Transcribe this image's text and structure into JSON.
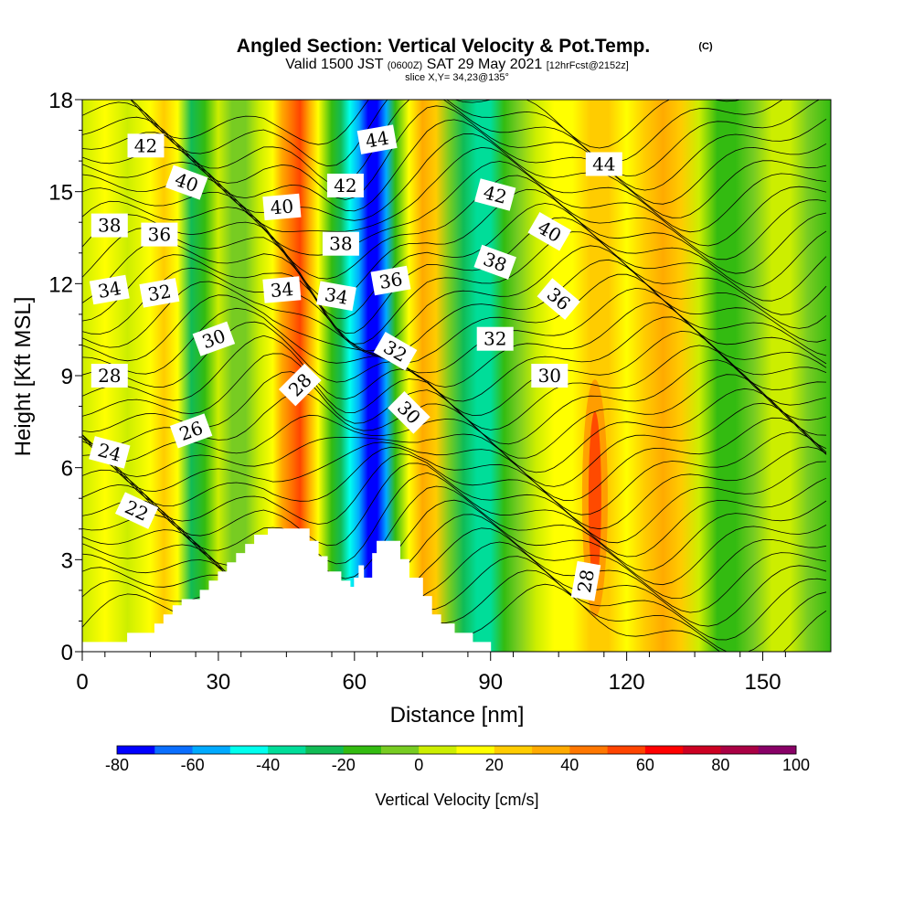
{
  "chart_data": {
    "type": "heatmap",
    "title": "Angled Section: Vertical Velocity & Pot.Temp.",
    "title_mark": "(C)",
    "subtitle": {
      "valid_prefix": "Valid 1500 JST",
      "utc": "(0600Z)",
      "date": "SAT 29 May 2021",
      "forecast": "[12hrFcst@2152z]"
    },
    "slice_note": "slice X,Y= 34,23@135°",
    "xlabel": "Distance [nm]",
    "ylabel": "Height [Kft MSL]",
    "xlim": [
      0,
      165
    ],
    "ylim": [
      0,
      18
    ],
    "xticks": [
      0,
      30,
      60,
      90,
      120,
      150
    ],
    "yticks": [
      0,
      3,
      6,
      9,
      12,
      15,
      18
    ],
    "colorbar": {
      "label": "Vertical Velocity [cm/s]",
      "levels": [
        -80,
        -70,
        -60,
        -50,
        -40,
        -30,
        -20,
        -10,
        0,
        10,
        20,
        30,
        40,
        50,
        60,
        70,
        80,
        90,
        100
      ],
      "tick_labels": [
        "-80",
        "-60",
        "-40",
        "-20",
        "0",
        "20",
        "40",
        "60",
        "80",
        "100"
      ],
      "colors": [
        "#0000ff",
        "#0a6eff",
        "#00aaff",
        "#00ffee",
        "#00dd99",
        "#11bb55",
        "#33bb11",
        "#77cc22",
        "#ccee00",
        "#ffff00",
        "#ffcc00",
        "#ffaa00",
        "#ff7700",
        "#ff4400",
        "#ff0000",
        "#cc0022",
        "#aa0044",
        "#880066"
      ]
    },
    "vertical_velocity_columns": [
      {
        "x": 0,
        "w": 0
      },
      {
        "x": 5,
        "w": 12
      },
      {
        "x": 10,
        "w": 8
      },
      {
        "x": 15,
        "w": 18
      },
      {
        "x": 18,
        "w": 24
      },
      {
        "x": 21,
        "w": 10
      },
      {
        "x": 24,
        "w": -22
      },
      {
        "x": 27,
        "w": -12
      },
      {
        "x": 30,
        "w": 2
      },
      {
        "x": 33,
        "w": -4
      },
      {
        "x": 36,
        "w": -10
      },
      {
        "x": 39,
        "w": 0
      },
      {
        "x": 42,
        "w": 18
      },
      {
        "x": 44,
        "w": 32
      },
      {
        "x": 46,
        "w": 48
      },
      {
        "x": 48,
        "w": 52
      },
      {
        "x": 50,
        "w": 36
      },
      {
        "x": 52,
        "w": 14
      },
      {
        "x": 55,
        "w": -14
      },
      {
        "x": 57,
        "w": -30
      },
      {
        "x": 59,
        "w": -44
      },
      {
        "x": 61,
        "w": -58
      },
      {
        "x": 63,
        "w": -72
      },
      {
        "x": 65,
        "w": -78
      },
      {
        "x": 67,
        "w": -52
      },
      {
        "x": 69,
        "w": -18
      },
      {
        "x": 72,
        "w": 14
      },
      {
        "x": 75,
        "w": 30
      },
      {
        "x": 78,
        "w": 20
      },
      {
        "x": 81,
        "w": -6
      },
      {
        "x": 84,
        "w": -22
      },
      {
        "x": 87,
        "w": -38
      },
      {
        "x": 90,
        "w": -34
      },
      {
        "x": 93,
        "w": -20
      },
      {
        "x": 96,
        "w": -6
      },
      {
        "x": 100,
        "w": 6
      },
      {
        "x": 104,
        "w": 12
      },
      {
        "x": 108,
        "w": 18
      },
      {
        "x": 112,
        "w": 26
      },
      {
        "x": 116,
        "w": 20
      },
      {
        "x": 120,
        "w": 12
      },
      {
        "x": 124,
        "w": 22
      },
      {
        "x": 128,
        "w": 34
      },
      {
        "x": 132,
        "w": 20
      },
      {
        "x": 136,
        "w": 4
      },
      {
        "x": 140,
        "w": -12
      },
      {
        "x": 144,
        "w": -18
      },
      {
        "x": 148,
        "w": -6
      },
      {
        "x": 152,
        "w": 4
      },
      {
        "x": 156,
        "w": 0
      },
      {
        "x": 160,
        "w": -6
      },
      {
        "x": 165,
        "w": -14
      }
    ],
    "lower_level_updraft_core": {
      "x": 113,
      "w": 62
    },
    "terrain": [
      [
        0,
        0.3
      ],
      [
        10,
        0.3
      ],
      [
        10,
        0.6
      ],
      [
        16,
        0.6
      ],
      [
        16,
        0.9
      ],
      [
        18,
        0.9
      ],
      [
        18,
        1.2
      ],
      [
        20,
        1.2
      ],
      [
        20,
        1.5
      ],
      [
        22,
        1.5
      ],
      [
        22,
        1.7
      ],
      [
        26,
        1.7
      ],
      [
        26,
        2.0
      ],
      [
        28,
        2.0
      ],
      [
        28,
        2.3
      ],
      [
        30,
        2.3
      ],
      [
        30,
        2.6
      ],
      [
        32,
        2.6
      ],
      [
        32,
        2.9
      ],
      [
        34,
        2.9
      ],
      [
        34,
        3.2
      ],
      [
        36,
        3.2
      ],
      [
        36,
        3.5
      ],
      [
        38,
        3.5
      ],
      [
        38,
        3.8
      ],
      [
        41,
        3.8
      ],
      [
        41,
        4.0
      ],
      [
        50,
        4.0
      ],
      [
        50,
        3.6
      ],
      [
        52,
        3.6
      ],
      [
        52,
        3.1
      ],
      [
        54,
        3.1
      ],
      [
        54,
        2.6
      ],
      [
        57,
        2.6
      ],
      [
        57,
        2.3
      ],
      [
        59,
        2.3
      ],
      [
        59,
        2.1
      ],
      [
        60,
        2.1
      ],
      [
        60,
        2.4
      ],
      [
        61,
        2.4
      ],
      [
        61,
        2.8
      ],
      [
        62,
        2.8
      ],
      [
        62,
        2.4
      ],
      [
        64,
        2.4
      ],
      [
        64,
        3.2
      ],
      [
        65,
        3.2
      ],
      [
        65,
        3.6
      ],
      [
        70,
        3.6
      ],
      [
        70,
        3.0
      ],
      [
        72,
        3.0
      ],
      [
        72,
        2.4
      ],
      [
        75,
        2.4
      ],
      [
        75,
        1.8
      ],
      [
        77,
        1.8
      ],
      [
        77,
        1.2
      ],
      [
        79,
        1.2
      ],
      [
        79,
        0.9
      ],
      [
        82,
        0.9
      ],
      [
        82,
        0.6
      ],
      [
        86,
        0.6
      ],
      [
        86,
        0.3
      ],
      [
        90,
        0.3
      ],
      [
        90,
        0
      ],
      [
        0,
        0
      ]
    ],
    "theta_contour_labels": [
      {
        "text": "42",
        "x": 14,
        "y": 16.5,
        "angle": 0
      },
      {
        "text": "40",
        "x": 23,
        "y": 15.3,
        "angle": 20
      },
      {
        "text": "38",
        "x": 6,
        "y": 13.9,
        "angle": 0
      },
      {
        "text": "36",
        "x": 17,
        "y": 13.6,
        "angle": 0
      },
      {
        "text": "34",
        "x": 6,
        "y": 11.8,
        "angle": -10
      },
      {
        "text": "32",
        "x": 17,
        "y": 11.7,
        "angle": -10
      },
      {
        "text": "30",
        "x": 29,
        "y": 10.2,
        "angle": -20
      },
      {
        "text": "28",
        "x": 6,
        "y": 9.0,
        "angle": 0
      },
      {
        "text": "26",
        "x": 24,
        "y": 7.2,
        "angle": -20
      },
      {
        "text": "24",
        "x": 6,
        "y": 6.5,
        "angle": 15
      },
      {
        "text": "22",
        "x": 12,
        "y": 4.6,
        "angle": 25
      },
      {
        "text": "40",
        "x": 44,
        "y": 14.5,
        "angle": -5
      },
      {
        "text": "34",
        "x": 44,
        "y": 11.8,
        "angle": -5
      },
      {
        "text": "28",
        "x": 48,
        "y": 8.7,
        "angle": -45
      },
      {
        "text": "44",
        "x": 65,
        "y": 16.7,
        "angle": -10
      },
      {
        "text": "42",
        "x": 58,
        "y": 15.2,
        "angle": 0
      },
      {
        "text": "38",
        "x": 57,
        "y": 13.3,
        "angle": 0
      },
      {
        "text": "34",
        "x": 56,
        "y": 11.6,
        "angle": 10
      },
      {
        "text": "36",
        "x": 68,
        "y": 12.1,
        "angle": -10
      },
      {
        "text": "32",
        "x": 69,
        "y": 9.8,
        "angle": 30
      },
      {
        "text": "30",
        "x": 72,
        "y": 7.8,
        "angle": 45
      },
      {
        "text": "42",
        "x": 91,
        "y": 14.9,
        "angle": 15
      },
      {
        "text": "38",
        "x": 91,
        "y": 12.7,
        "angle": 20
      },
      {
        "text": "40",
        "x": 103,
        "y": 13.7,
        "angle": 30
      },
      {
        "text": "44",
        "x": 115,
        "y": 15.9,
        "angle": 0
      },
      {
        "text": "36",
        "x": 105,
        "y": 11.5,
        "angle": 40
      },
      {
        "text": "32",
        "x": 91,
        "y": 10.2,
        "angle": 0
      },
      {
        "text": "30",
        "x": 103,
        "y": 9.0,
        "angle": 0
      },
      {
        "text": "28",
        "x": 111,
        "y": 2.3,
        "angle": -80
      }
    ]
  }
}
